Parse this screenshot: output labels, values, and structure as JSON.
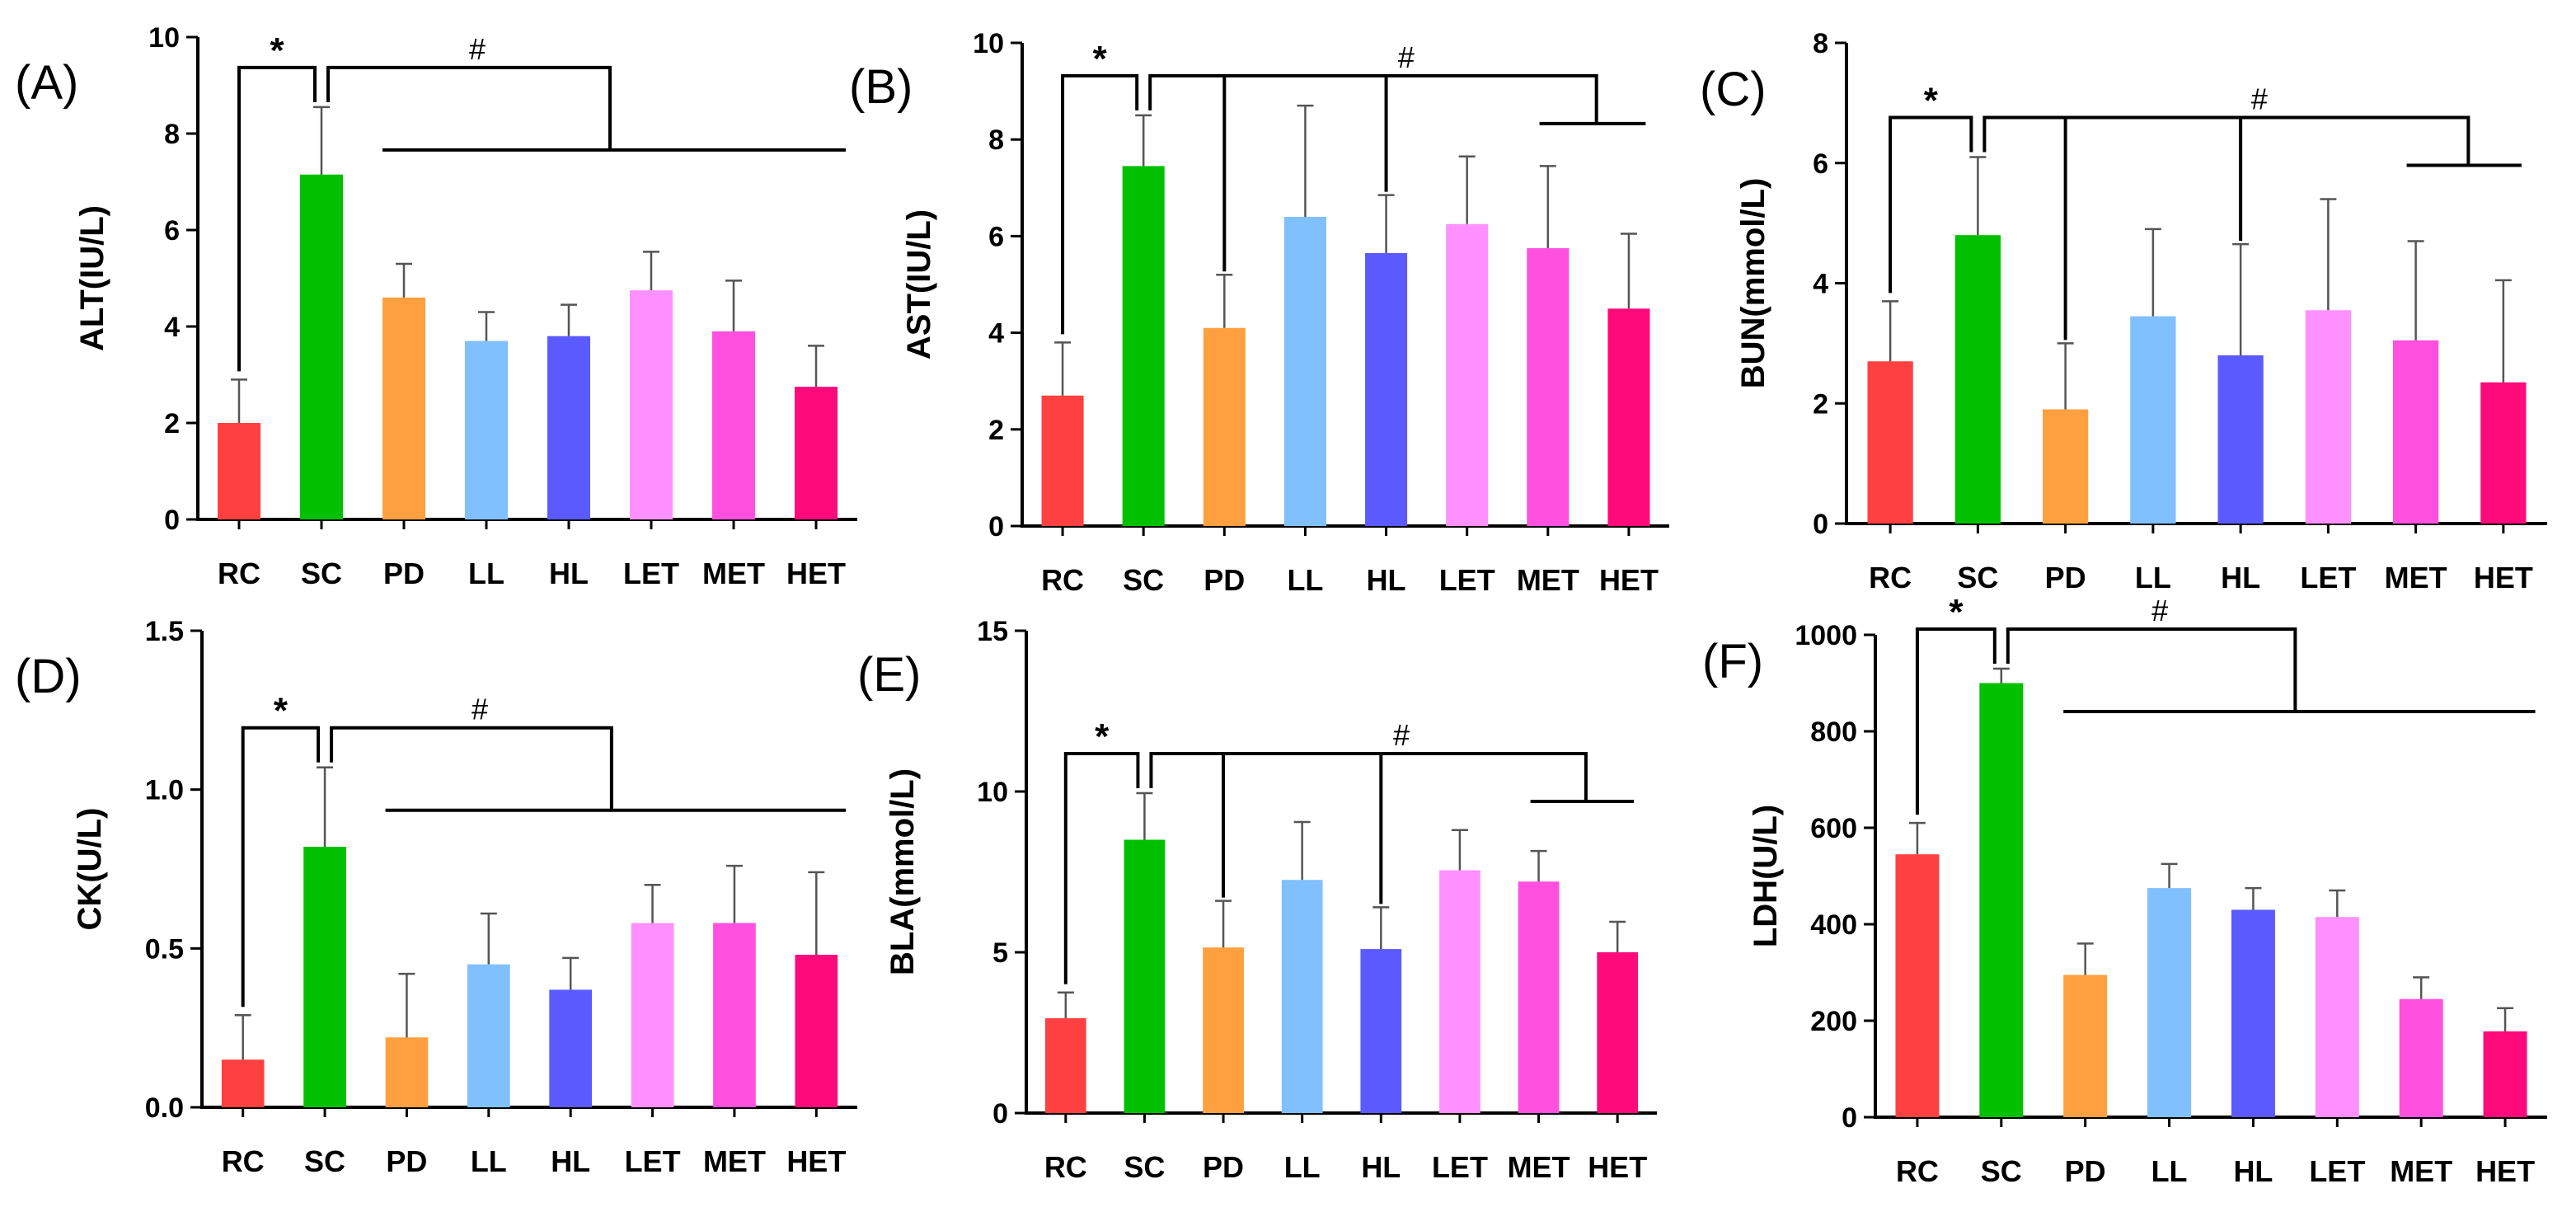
{
  "categories": [
    "RC",
    "SC",
    "PD",
    "LL",
    "HL",
    "LET",
    "MET",
    "HET"
  ],
  "colors": [
    "#ff4040",
    "#00c000",
    "#ffa040",
    "#80c0ff",
    "#5a5aff",
    "#ff90ff",
    "#ff50e0",
    "#ff0a7a"
  ],
  "chart_data": [
    {
      "type": "bar",
      "panel": "(A)",
      "ylabel": "ALT(IU/L)",
      "ylim": [
        0,
        10
      ],
      "yticks": [
        0,
        2,
        4,
        6,
        8,
        10
      ],
      "ytick_labels": [
        "0",
        "2",
        "4",
        "6",
        "8",
        "10"
      ],
      "categories": [
        "RC",
        "SC",
        "PD",
        "LL",
        "HL",
        "LET",
        "MET",
        "HET"
      ],
      "values": [
        2.0,
        7.15,
        4.6,
        3.7,
        3.8,
        4.75,
        3.9,
        2.75
      ],
      "errors": [
        0.9,
        1.4,
        0.7,
        0.6,
        0.65,
        0.8,
        1.05,
        0.85
      ],
      "significance": {
        "star": "*",
        "hash": "#",
        "drop_lines_on": []
      }
    },
    {
      "type": "bar",
      "panel": "(B)",
      "ylabel": "AST(IU/L)",
      "ylim": [
        0,
        10
      ],
      "yticks": [
        0,
        2,
        4,
        6,
        8,
        10
      ],
      "ytick_labels": [
        "0",
        "2",
        "4",
        "6",
        "8",
        "10"
      ],
      "categories": [
        "RC",
        "SC",
        "PD",
        "LL",
        "HL",
        "LET",
        "MET",
        "HET"
      ],
      "values": [
        2.7,
        7.45,
        4.1,
        6.4,
        5.65,
        6.25,
        5.75,
        4.5
      ],
      "errors": [
        1.1,
        1.05,
        1.1,
        2.3,
        1.2,
        1.4,
        1.7,
        1.55
      ],
      "significance": {
        "star": "*",
        "hash": "#",
        "drop_lines_on": [
          2,
          4
        ]
      }
    },
    {
      "type": "bar",
      "panel": "(C)",
      "ylabel": "BUN(mmol/L)",
      "ylim": [
        0,
        8
      ],
      "yticks": [
        0,
        2,
        4,
        6,
        8
      ],
      "ytick_labels": [
        "0",
        "2",
        "4",
        "6",
        "8"
      ],
      "categories": [
        "RC",
        "SC",
        "PD",
        "LL",
        "HL",
        "LET",
        "MET",
        "HET"
      ],
      "values": [
        2.7,
        4.8,
        1.9,
        3.45,
        2.8,
        3.55,
        3.05,
        2.35
      ],
      "errors": [
        1.0,
        1.3,
        1.1,
        1.45,
        1.85,
        1.85,
        1.65,
        1.7
      ],
      "significance": {
        "star": "*",
        "hash": "#",
        "drop_lines_on": [
          2,
          4
        ]
      }
    },
    {
      "type": "bar",
      "panel": "(D)",
      "ylabel": "CK(U/L)",
      "ylim": [
        0,
        1.5
      ],
      "yticks": [
        0,
        0.5,
        1.0,
        1.5
      ],
      "ytick_labels": [
        "0.0",
        "0.5",
        "1.0",
        "1.5"
      ],
      "categories": [
        "RC",
        "SC",
        "PD",
        "LL",
        "HL",
        "LET",
        "MET",
        "HET"
      ],
      "values": [
        0.15,
        0.82,
        0.22,
        0.45,
        0.37,
        0.58,
        0.58,
        0.48
      ],
      "errors": [
        0.14,
        0.25,
        0.2,
        0.16,
        0.1,
        0.12,
        0.18,
        0.26
      ],
      "significance": {
        "star": "*",
        "hash": "#",
        "drop_lines_on": []
      }
    },
    {
      "type": "bar",
      "panel": "(E)",
      "ylabel": "BLA(mmol/L)",
      "ylim": [
        0,
        15
      ],
      "yticks": [
        0,
        5,
        10,
        15
      ],
      "ytick_labels": [
        "0",
        "5",
        "10",
        "15"
      ],
      "categories": [
        "RC",
        "SC",
        "PD",
        "LL",
        "HL",
        "LET",
        "MET",
        "HET"
      ],
      "values": [
        2.95,
        8.5,
        5.15,
        7.25,
        5.1,
        7.55,
        7.2,
        5.0
      ],
      "errors": [
        0.8,
        1.45,
        1.45,
        1.8,
        1.3,
        1.25,
        0.95,
        0.95
      ],
      "significance": {
        "star": "*",
        "hash": "#",
        "drop_lines_on": [
          2,
          4
        ]
      }
    },
    {
      "type": "bar",
      "panel": "(F)",
      "ylabel": "LDH(U/L)",
      "ylim": [
        0,
        1000
      ],
      "yticks": [
        0,
        200,
        400,
        600,
        800,
        1000
      ],
      "ytick_labels": [
        "0",
        "200",
        "400",
        "600",
        "800",
        "1000"
      ],
      "categories": [
        "RC",
        "SC",
        "PD",
        "LL",
        "HL",
        "LET",
        "MET",
        "HET"
      ],
      "values": [
        545,
        900,
        295,
        475,
        430,
        415,
        245,
        178
      ],
      "errors": [
        65,
        30,
        65,
        50,
        45,
        55,
        45,
        48
      ],
      "significance": {
        "star": "*",
        "hash": "#",
        "drop_lines_on": []
      }
    }
  ]
}
